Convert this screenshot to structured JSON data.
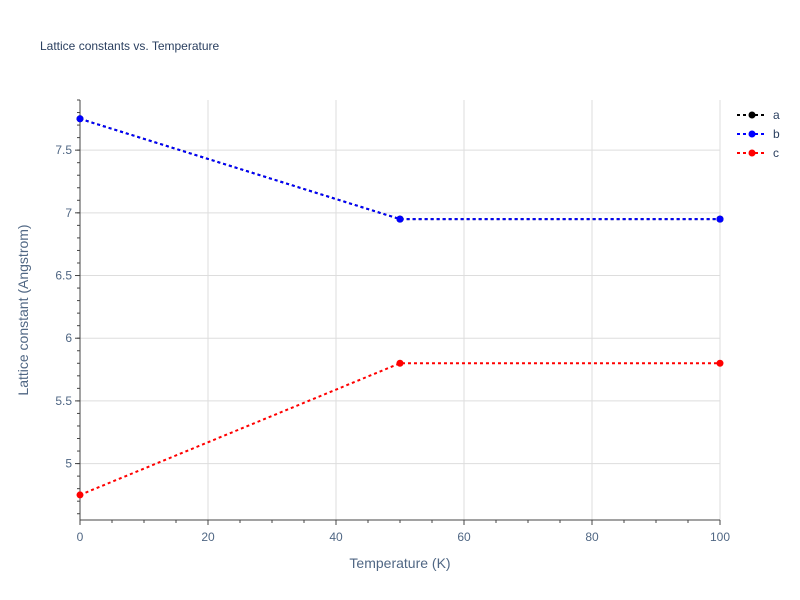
{
  "chart_data": {
    "type": "line",
    "title": "Lattice constants vs. Temperature",
    "xlabel": "Temperature (K)",
    "ylabel": "Lattice constant (Angstrom)",
    "xlim": [
      0,
      100
    ],
    "ylim": [
      4.55,
      7.9
    ],
    "x_ticks": [
      0,
      20,
      40,
      60,
      80,
      100
    ],
    "y_ticks": [
      5,
      5.5,
      6,
      6.5,
      7,
      7.5
    ],
    "grid": true,
    "legend_position": "top-right",
    "series": [
      {
        "name": "a",
        "color": "#000000",
        "x": [
          0,
          50,
          100
        ],
        "y": [
          7.75,
          6.95,
          6.95
        ]
      },
      {
        "name": "b",
        "color": "#0000ff",
        "x": [
          0,
          50,
          100
        ],
        "y": [
          7.75,
          6.95,
          6.95
        ]
      },
      {
        "name": "c",
        "color": "#ff0000",
        "x": [
          0,
          50,
          100
        ],
        "y": [
          4.75,
          5.8,
          5.8
        ]
      }
    ]
  }
}
